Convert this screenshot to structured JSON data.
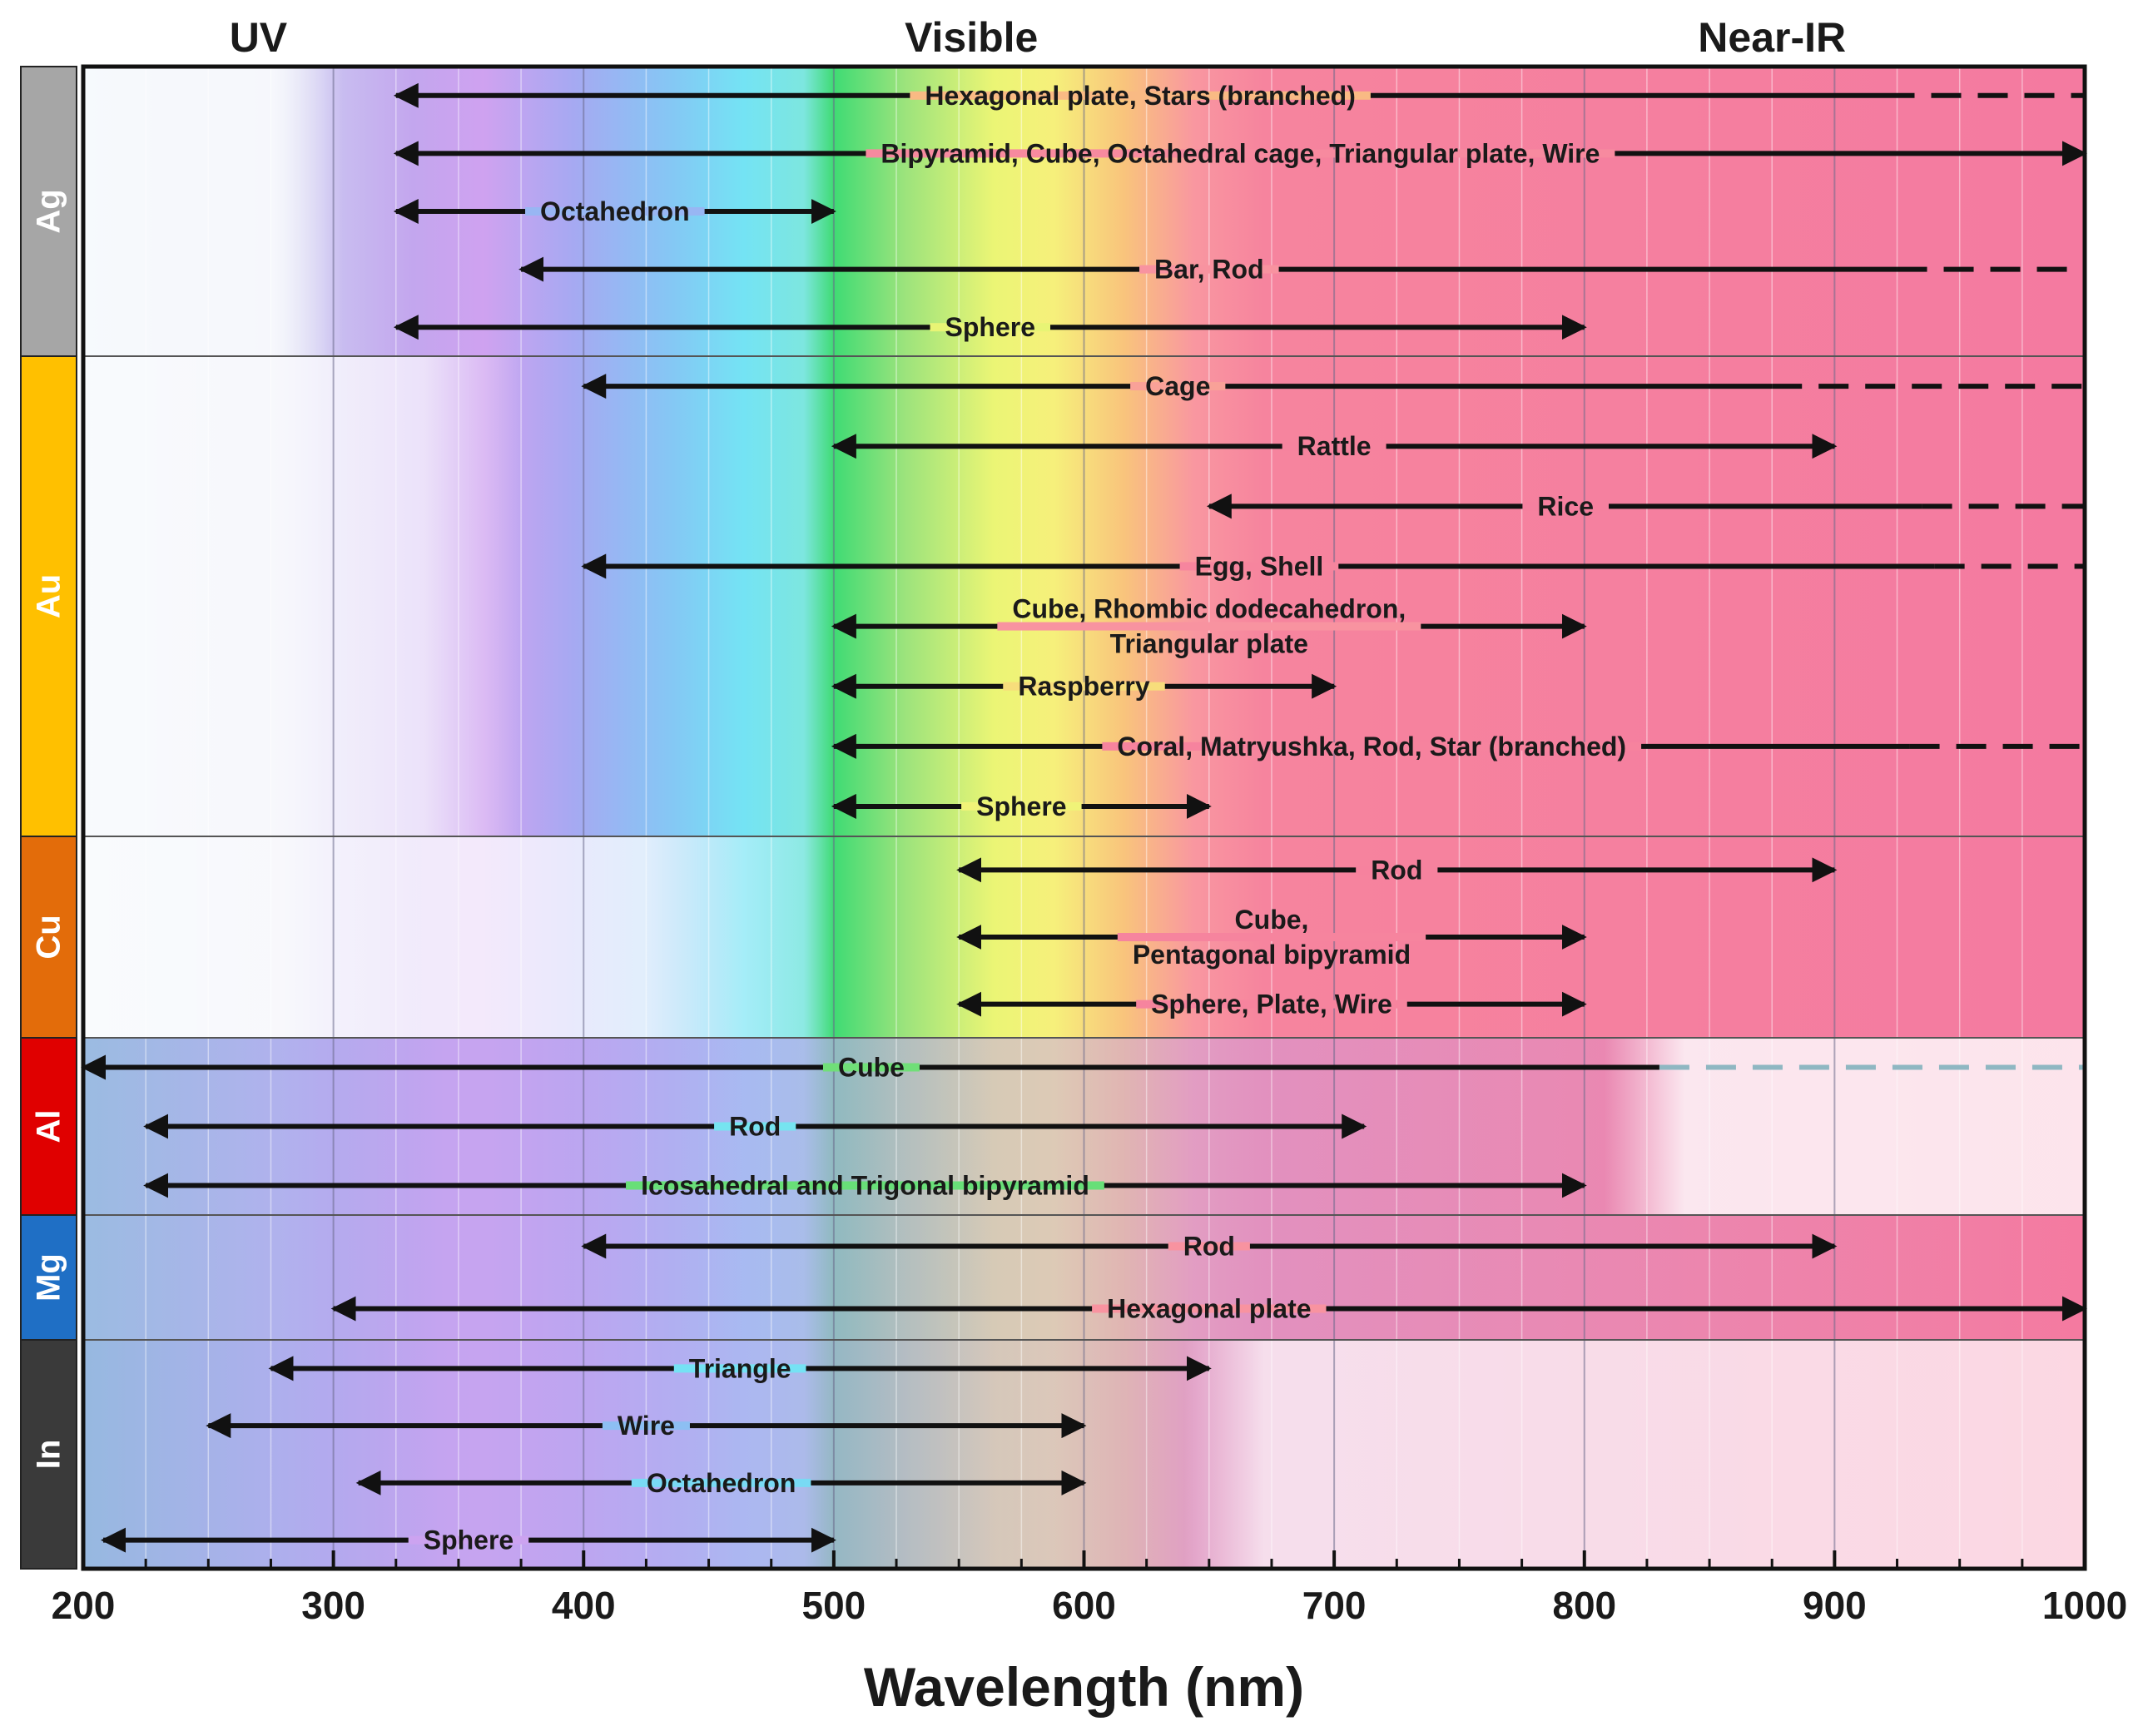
{
  "chart_data": {
    "type": "range",
    "title": "",
    "xlabel": "Wavelength (nm)",
    "ylabel": "",
    "xlim": [
      200,
      1000
    ],
    "x_ticks": [
      200,
      300,
      400,
      500,
      600,
      700,
      800,
      900,
      1000
    ],
    "regions": [
      {
        "name": "UV",
        "center": 270
      },
      {
        "name": "Visible",
        "center": 555
      },
      {
        "name": "Near-IR",
        "center": 875
      }
    ],
    "groups": [
      {
        "metal": "Ag",
        "color": "#a6a6a6",
        "rows": 5,
        "bands": [
          {
            "label": [
              "Hexagonal plate, Stars (branched)"
            ],
            "start": 325,
            "end": 920,
            "dashed_to": 1000
          },
          {
            "label": [
              "Bipyramid, Cube, Octahedral cage, Triangular plate, Wire"
            ],
            "start": 325,
            "end": 1000
          },
          {
            "label": [
              "Octahedron"
            ],
            "start": 325,
            "end": 500
          },
          {
            "label": [
              "Bar, Rod"
            ],
            "start": 375,
            "end": 925,
            "dashed_to": 1000
          },
          {
            "label": [
              "Sphere"
            ],
            "start": 325,
            "end": 800
          }
        ]
      },
      {
        "metal": "Au",
        "color": "#ffc000",
        "rows": 8,
        "bands": [
          {
            "label": [
              "Cage"
            ],
            "start": 400,
            "end": 875,
            "dashed_to": 1000
          },
          {
            "label": [
              "Rattle"
            ],
            "start": 500,
            "end": 900
          },
          {
            "label": [
              "Rice"
            ],
            "start": 650,
            "end": 935,
            "dashed_to": 1000
          },
          {
            "label": [
              "Egg, Shell"
            ],
            "start": 400,
            "end": 940,
            "dashed_to": 1000
          },
          {
            "label": [
              "Cube, Rhombic dodecahedron,",
              "Triangular plate"
            ],
            "start": 500,
            "end": 800
          },
          {
            "label": [
              "Raspberry"
            ],
            "start": 500,
            "end": 700
          },
          {
            "label": [
              "Coral, Matryushka, Rod, Star (branched)"
            ],
            "start": 500,
            "end": 930,
            "dashed_to": 1000
          },
          {
            "label": [
              "Sphere"
            ],
            "start": 500,
            "end": 650
          }
        ]
      },
      {
        "metal": "Cu",
        "color": "#e36c0a",
        "rows": 3,
        "bands": [
          {
            "label": [
              "Rod"
            ],
            "start": 550,
            "end": 900
          },
          {
            "label": [
              "Cube,",
              "Pentagonal bipyramid"
            ],
            "start": 550,
            "end": 800
          },
          {
            "label": [
              "Sphere, Plate, Wire"
            ],
            "start": 550,
            "end": 800
          }
        ]
      },
      {
        "metal": "Al",
        "color": "#e00000",
        "rows": 3,
        "bands": [
          {
            "label": [
              "Cube"
            ],
            "start": 200,
            "end": 830,
            "dashed_to": 1000
          },
          {
            "label": [
              "Rod"
            ],
            "start": 225,
            "end": 712
          },
          {
            "label": [
              "Icosahedral and Trigonal bipyramid"
            ],
            "start": 225,
            "end": 800
          }
        ]
      },
      {
        "metal": "Mg",
        "color": "#1f6fc5",
        "rows": 2,
        "bands": [
          {
            "label": [
              "Rod"
            ],
            "start": 400,
            "end": 900
          },
          {
            "label": [
              "Hexagonal plate"
            ],
            "start": 300,
            "end": 1000
          }
        ]
      },
      {
        "metal": "In",
        "color": "#3a3a3a",
        "rows": 4,
        "bands": [
          {
            "label": [
              "Triangle"
            ],
            "start": 275,
            "end": 650
          },
          {
            "label": [
              "Wire"
            ],
            "start": 250,
            "end": 600
          },
          {
            "label": [
              "Octahedron"
            ],
            "start": 310,
            "end": 600
          },
          {
            "label": [
              "Sphere"
            ],
            "start": 208,
            "end": 500
          }
        ]
      }
    ]
  }
}
